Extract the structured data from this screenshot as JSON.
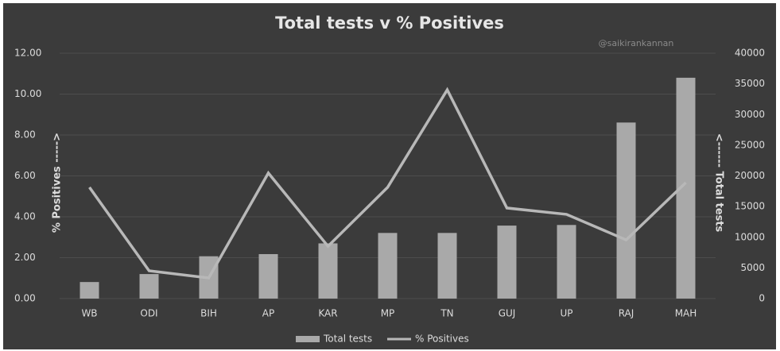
{
  "chart_data": {
    "type": "combo",
    "title": "Total tests v % Positives",
    "annotation": "@saikirankannan",
    "y_label": "% Positives ----->",
    "y2_label": "<------ Total tests",
    "categories": [
      "WB",
      "ODI",
      "BIH",
      "AP",
      "KAR",
      "MP",
      "TN",
      "GUJ",
      "UP",
      "RAJ",
      "MAH"
    ],
    "series": [
      {
        "name": "Total tests",
        "type": "bar",
        "axis": "y2",
        "color": "#a9a9a9",
        "values": [
          2700,
          4000,
          6900,
          7250,
          9000,
          10700,
          10700,
          11900,
          12000,
          28700,
          36000
        ]
      },
      {
        "name": "% Positives",
        "type": "line",
        "axis": "y",
        "color": "#b8b8b8",
        "values": [
          5.44,
          1.36,
          1.01,
          6.14,
          2.56,
          5.44,
          10.21,
          4.43,
          4.12,
          2.87,
          5.67
        ]
      }
    ],
    "ylim": [
      0,
      12
    ],
    "yticks": [
      {
        "value": 0,
        "label": "0.00"
      },
      {
        "value": 2,
        "label": "2.00"
      },
      {
        "value": 4,
        "label": "4.00"
      },
      {
        "value": 6,
        "label": "6.00"
      },
      {
        "value": 8,
        "label": "8.00"
      },
      {
        "value": 10,
        "label": "10.00"
      },
      {
        "value": 12,
        "label": "12.00"
      }
    ],
    "y2lim": [
      0,
      40000
    ],
    "y2ticks": [
      0,
      5000,
      10000,
      15000,
      20000,
      25000,
      30000,
      35000,
      40000
    ],
    "grid": true,
    "legend": "bottom"
  }
}
